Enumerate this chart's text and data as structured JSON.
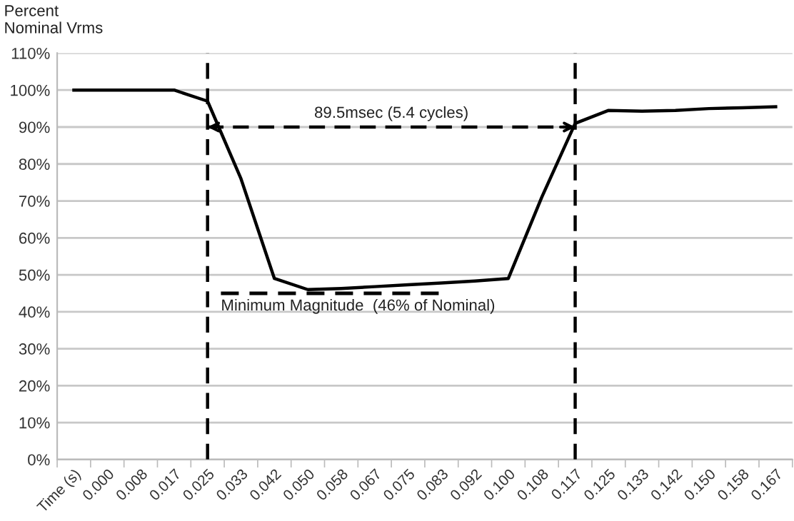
{
  "chart_data": {
    "type": "line",
    "ylabel": "Percent\nNominal Vrms",
    "categories": [
      "Time (s)",
      "0.000",
      "0.008",
      "0.017",
      "0.025",
      "0.033",
      "0.042",
      "0.050",
      "0.058",
      "0.067",
      "0.075",
      "0.083",
      "0.092",
      "0.100",
      "0.108",
      "0.117",
      "0.125",
      "0.133",
      "0.142",
      "0.150",
      "0.158",
      "0.167"
    ],
    "series": [
      {
        "color": "#000000",
        "values": [
          100,
          100,
          100,
          100,
          97,
          76,
          49,
          46,
          46.3,
          46.8,
          47.3,
          47.8,
          48.3,
          49,
          71,
          91,
          94.5,
          94.3,
          94.5,
          95,
          95.2,
          95.5
        ]
      },
      {
        "type": "line",
        "x": [
          "0.025",
          "0.117"
        ],
        "color": "#000000",
        "line_style": "dashed",
        "values": [
          90,
          90
        ]
      }
    ],
    "ylim": [
      0,
      110
    ],
    "yticks": [
      {
        "value": 0,
        "label": "0%"
      },
      {
        "value": 10,
        "label": "10%"
      },
      {
        "value": 20,
        "label": "20%"
      },
      {
        "value": 30,
        "label": "30%"
      },
      {
        "value": 40,
        "label": "40%"
      },
      {
        "value": 50,
        "label": "50%"
      },
      {
        "value": 60,
        "label": "60%"
      },
      {
        "value": 70,
        "label": "70%"
      },
      {
        "value": 80,
        "label": "80%"
      },
      {
        "value": 90,
        "label": "90%"
      },
      {
        "value": 100,
        "label": "100%"
      },
      {
        "value": 110,
        "label": "110%"
      }
    ],
    "grid": "y",
    "marker": "none",
    "line_style": "solid",
    "ref_lines": [
      {
        "axis": "x",
        "value": "0.025",
        "color": "#000000",
        "line_style": "dashed"
      },
      {
        "axis": "x",
        "value": "0.117",
        "color": "#000000",
        "line_style": "dashed"
      }
    ],
    "annotations": [
      "89.5msec (5.4 cycles)",
      "Minimum Magnitude  (46% of Nominal)"
    ]
  }
}
